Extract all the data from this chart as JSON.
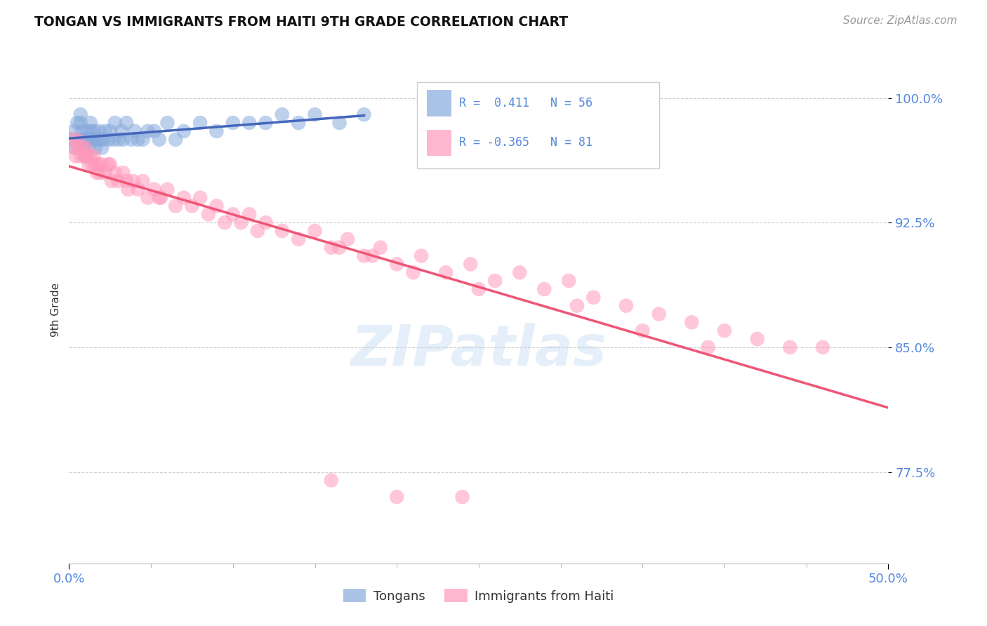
{
  "title": "TONGAN VS IMMIGRANTS FROM HAITI 9TH GRADE CORRELATION CHART",
  "source": "Source: ZipAtlas.com",
  "ylabel": "9th Grade",
  "ytick_labels": [
    "100.0%",
    "92.5%",
    "85.0%",
    "77.5%"
  ],
  "ytick_values": [
    1.0,
    0.925,
    0.85,
    0.775
  ],
  "xlim": [
    0.0,
    0.5
  ],
  "ylim": [
    0.72,
    1.025
  ],
  "watermark": "ZIPatlas",
  "tongans_R": 0.411,
  "tongans_N": 56,
  "haiti_R": -0.365,
  "haiti_N": 81,
  "blue_color": "#88AADD",
  "pink_color": "#FF99BB",
  "blue_line_color": "#4466BB",
  "pink_line_color": "#EE5577",
  "tongans_x": [
    0.002,
    0.003,
    0.004,
    0.005,
    0.006,
    0.007,
    0.007,
    0.008,
    0.008,
    0.009,
    0.01,
    0.01,
    0.011,
    0.011,
    0.012,
    0.012,
    0.013,
    0.013,
    0.014,
    0.015,
    0.015,
    0.016,
    0.017,
    0.018,
    0.019,
    0.02,
    0.021,
    0.022,
    0.024,
    0.025,
    0.027,
    0.028,
    0.03,
    0.032,
    0.033,
    0.035,
    0.038,
    0.04,
    0.042,
    0.045,
    0.048,
    0.052,
    0.055,
    0.06,
    0.065,
    0.07,
    0.08,
    0.09,
    0.1,
    0.11,
    0.12,
    0.13,
    0.14,
    0.15,
    0.165,
    0.18
  ],
  "tongans_y": [
    0.975,
    0.98,
    0.97,
    0.985,
    0.975,
    0.99,
    0.985,
    0.975,
    0.98,
    0.97,
    0.975,
    0.965,
    0.975,
    0.98,
    0.97,
    0.975,
    0.98,
    0.985,
    0.975,
    0.975,
    0.98,
    0.97,
    0.975,
    0.98,
    0.975,
    0.97,
    0.975,
    0.98,
    0.975,
    0.98,
    0.975,
    0.985,
    0.975,
    0.98,
    0.975,
    0.985,
    0.975,
    0.98,
    0.975,
    0.975,
    0.98,
    0.98,
    0.975,
    0.985,
    0.975,
    0.98,
    0.985,
    0.98,
    0.985,
    0.985,
    0.985,
    0.99,
    0.985,
    0.99,
    0.985,
    0.99
  ],
  "haiti_x": [
    0.002,
    0.003,
    0.004,
    0.005,
    0.006,
    0.007,
    0.008,
    0.009,
    0.01,
    0.011,
    0.012,
    0.013,
    0.014,
    0.015,
    0.016,
    0.017,
    0.018,
    0.019,
    0.02,
    0.022,
    0.024,
    0.026,
    0.028,
    0.03,
    0.033,
    0.036,
    0.039,
    0.042,
    0.045,
    0.048,
    0.052,
    0.056,
    0.06,
    0.065,
    0.07,
    0.075,
    0.08,
    0.085,
    0.09,
    0.095,
    0.1,
    0.105,
    0.11,
    0.115,
    0.12,
    0.13,
    0.14,
    0.15,
    0.16,
    0.17,
    0.18,
    0.19,
    0.2,
    0.215,
    0.23,
    0.245,
    0.26,
    0.275,
    0.29,
    0.305,
    0.32,
    0.34,
    0.36,
    0.38,
    0.4,
    0.42,
    0.44,
    0.46,
    0.025,
    0.035,
    0.055,
    0.165,
    0.185,
    0.21,
    0.25,
    0.31,
    0.35,
    0.39,
    0.16,
    0.2,
    0.24
  ],
  "haiti_y": [
    0.975,
    0.97,
    0.965,
    0.975,
    0.97,
    0.965,
    0.97,
    0.965,
    0.97,
    0.965,
    0.96,
    0.965,
    0.96,
    0.965,
    0.96,
    0.955,
    0.96,
    0.955,
    0.96,
    0.955,
    0.96,
    0.95,
    0.955,
    0.95,
    0.955,
    0.945,
    0.95,
    0.945,
    0.95,
    0.94,
    0.945,
    0.94,
    0.945,
    0.935,
    0.94,
    0.935,
    0.94,
    0.93,
    0.935,
    0.925,
    0.93,
    0.925,
    0.93,
    0.92,
    0.925,
    0.92,
    0.915,
    0.92,
    0.91,
    0.915,
    0.905,
    0.91,
    0.9,
    0.905,
    0.895,
    0.9,
    0.89,
    0.895,
    0.885,
    0.89,
    0.88,
    0.875,
    0.87,
    0.865,
    0.86,
    0.855,
    0.85,
    0.85,
    0.96,
    0.95,
    0.94,
    0.91,
    0.905,
    0.895,
    0.885,
    0.875,
    0.86,
    0.85,
    0.77,
    0.76,
    0.76
  ]
}
